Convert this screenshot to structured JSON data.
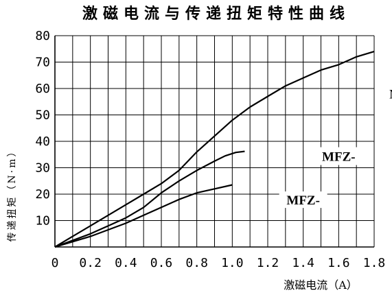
{
  "chart_data": {
    "type": "line",
    "title": "激磁电流与传递扭矩特性曲线",
    "xlabel": "激磁电流（A）",
    "ylabel": "传递扭矩（N·m）",
    "xlim": [
      0,
      1.8
    ],
    "ylim": [
      0,
      80
    ],
    "x_ticks": [
      "0",
      "0.2",
      "0.4",
      "0.6",
      "0.8",
      "1.0",
      "1.2",
      "1.4",
      "1.6",
      "1.8"
    ],
    "y_ticks": [
      "10",
      "20",
      "30",
      "40",
      "50",
      "60",
      "70",
      "80"
    ],
    "grid": true,
    "series": [
      {
        "name": "MFZ-",
        "points": [
          [
            0,
            0
          ],
          [
            0.1,
            4
          ],
          [
            0.2,
            8
          ],
          [
            0.3,
            12
          ],
          [
            0.4,
            16
          ],
          [
            0.5,
            20
          ],
          [
            0.6,
            24
          ],
          [
            0.7,
            29
          ],
          [
            0.8,
            36
          ],
          [
            0.9,
            42
          ],
          [
            1.0,
            48
          ],
          [
            1.1,
            53
          ],
          [
            1.2,
            57
          ],
          [
            1.3,
            61
          ],
          [
            1.4,
            64
          ],
          [
            1.5,
            67
          ],
          [
            1.6,
            69
          ],
          [
            1.7,
            72
          ],
          [
            1.8,
            74
          ]
        ]
      },
      {
        "name": "MFZ-",
        "points": [
          [
            0,
            0
          ],
          [
            0.1,
            2.5
          ],
          [
            0.2,
            5
          ],
          [
            0.3,
            8
          ],
          [
            0.4,
            11
          ],
          [
            0.5,
            15
          ],
          [
            0.6,
            20.5
          ],
          [
            0.7,
            25
          ],
          [
            0.8,
            29
          ],
          [
            0.9,
            32.5
          ],
          [
            0.96,
            34.5
          ],
          [
            1.02,
            35.8
          ],
          [
            1.07,
            36.2
          ]
        ]
      },
      {
        "name": "MFZ-",
        "points": [
          [
            0,
            0
          ],
          [
            0.1,
            2
          ],
          [
            0.2,
            4
          ],
          [
            0.3,
            6.5
          ],
          [
            0.4,
            9
          ],
          [
            0.5,
            12
          ],
          [
            0.6,
            15
          ],
          [
            0.7,
            18
          ],
          [
            0.8,
            20.5
          ],
          [
            0.9,
            22
          ],
          [
            1.0,
            23.5
          ]
        ]
      }
    ]
  }
}
